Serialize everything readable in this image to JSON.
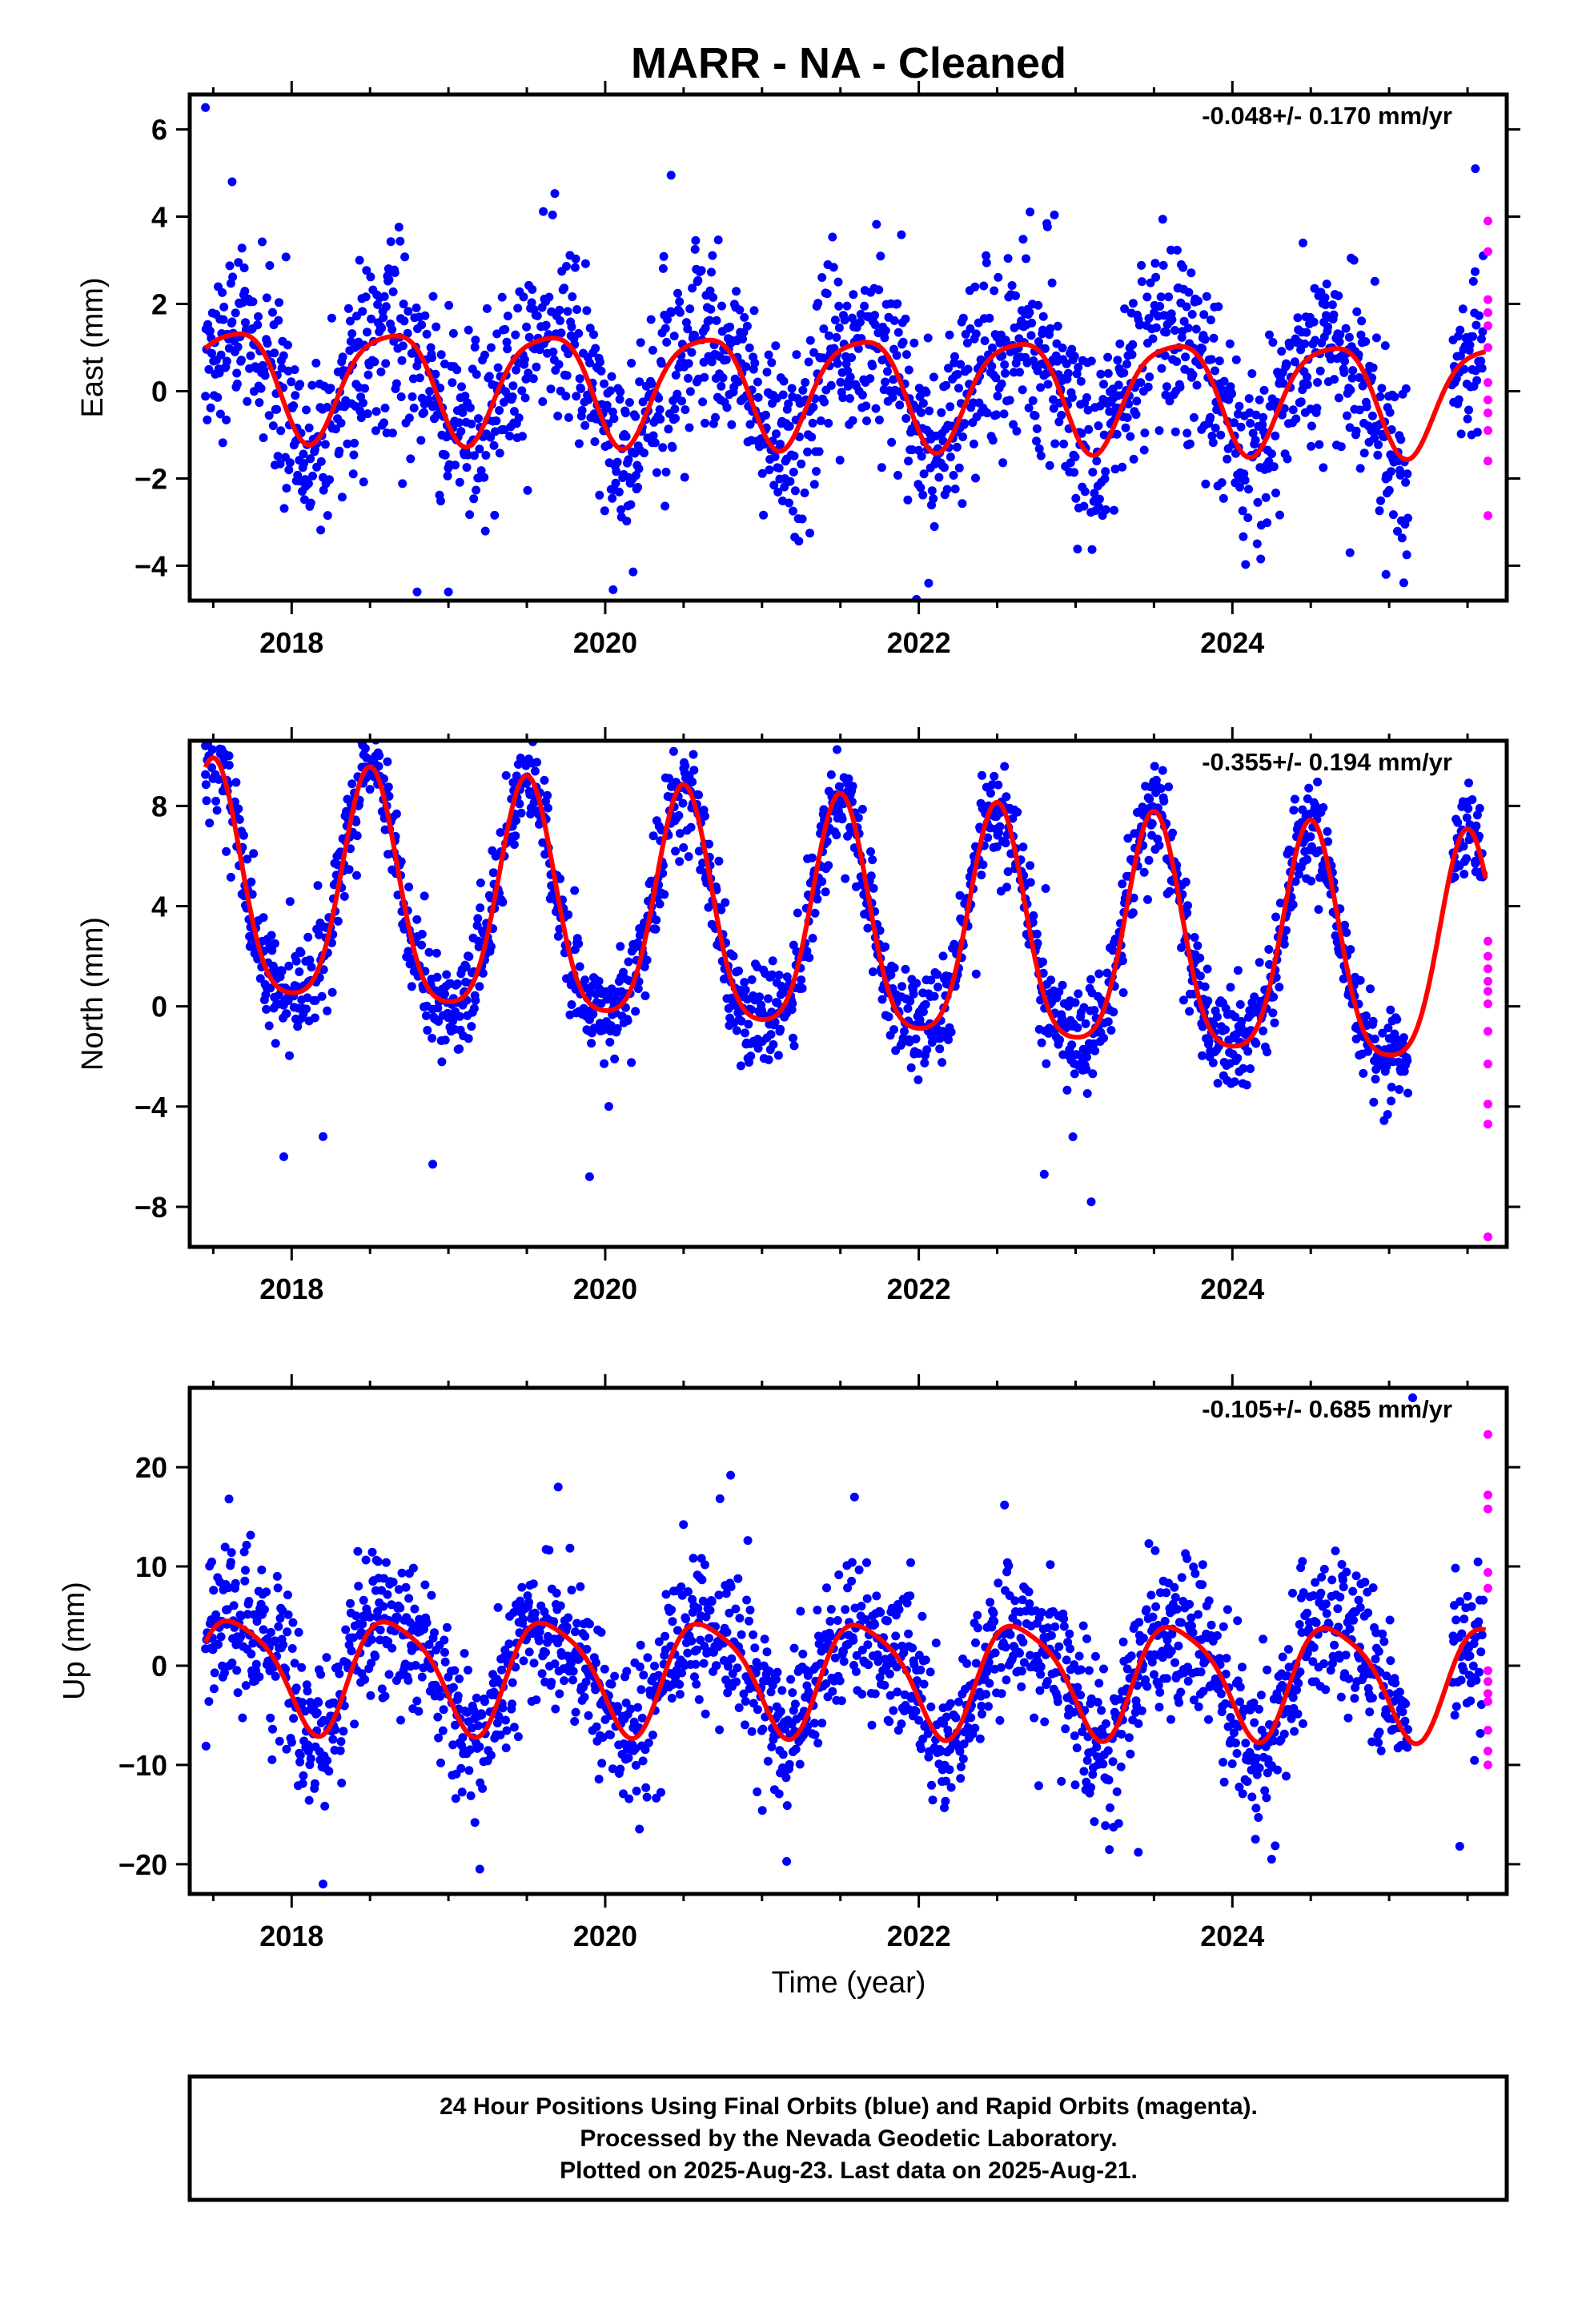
{
  "page": {
    "title": "MARR  - NA - Cleaned",
    "footer_lines": [
      "24 Hour Positions Using Final Orbits (blue) and Rapid Orbits (magenta).",
      "Processed by the Nevada Geodetic Laboratory.",
      "Plotted on 2025-Aug-23. Last data on 2025-Aug-21."
    ]
  },
  "colors": {
    "final_orbits": "#0000ff",
    "rapid_orbits": "#ff00ff",
    "model_curve": "#ff0000",
    "frame": "#000000"
  },
  "chart_data": [
    {
      "type": "scatter",
      "ylabel": "East (mm)",
      "xlabel": "",
      "rate_label": "-0.048+/- 0.170 mm/yr",
      "xlim": [
        2017.35,
        2025.75
      ],
      "ylim": [
        -4.8,
        6.8
      ],
      "x_ticks": [
        2018,
        2020,
        2022,
        2024
      ],
      "x_tick_labels": [
        "2018",
        "2020",
        "2022",
        "2024"
      ],
      "y_ticks": [
        -4,
        -2,
        0,
        2,
        4,
        6
      ],
      "y_tick_labels": [
        "−4",
        "−2",
        "0",
        "2",
        "4",
        "6"
      ],
      "model": {
        "bias": 0.1,
        "annual_amp": 1.25,
        "annual_peak": 0.62,
        "semiannual_amp": 0.25,
        "semiannual_peak": 0.35,
        "trend": -0.048
      },
      "scatter_sd": 1.05,
      "outliers": [
        [
          2017.45,
          6.5
        ],
        [
          2017.62,
          4.8
        ],
        [
          2020.42,
          4.95
        ],
        [
          2020.05,
          -4.55
        ],
        [
          2019.0,
          -4.6
        ],
        [
          2018.8,
          -4.6
        ],
        [
          2024.98,
          -4.2
        ],
        [
          2024.75,
          -3.7
        ],
        [
          2025.55,
          5.1
        ]
      ],
      "rapid_orbits": {
        "x": [
          2025.63,
          2025.63,
          2025.63,
          2025.63,
          2025.63,
          2025.63,
          2025.63,
          2025.63,
          2025.63,
          2025.63,
          2025.63,
          2025.63
        ],
        "y": [
          3.9,
          3.2,
          2.1,
          1.8,
          1.5,
          1.0,
          0.2,
          -0.2,
          -0.5,
          -0.9,
          -1.6,
          -2.85
        ]
      },
      "series": [
        {
          "name": "Final Orbits",
          "color": "#0000ff"
        },
        {
          "name": "Rapid Orbits",
          "color": "#ff00ff"
        }
      ]
    },
    {
      "type": "scatter",
      "ylabel": "North (mm)",
      "xlabel": "",
      "rate_label": "-0.355+/- 0.194 mm/yr",
      "xlim": [
        2017.35,
        2025.75
      ],
      "ylim": [
        -9.6,
        10.6
      ],
      "x_ticks": [
        2018,
        2020,
        2022,
        2024
      ],
      "x_tick_labels": [
        "2018",
        "2020",
        "2022",
        "2024"
      ],
      "y_ticks": [
        -8,
        -4,
        0,
        4,
        8
      ],
      "y_tick_labels": [
        "−8",
        "−4",
        "0",
        "4",
        "8"
      ],
      "model": {
        "bias": 3.0,
        "annual_amp": 4.6,
        "annual_peak": 0.5,
        "semiannual_amp": 0.9,
        "semiannual_peak": 0.0,
        "trend": -0.355
      },
      "scatter_sd": 0.95,
      "outliers": [
        [
          2017.45,
          10.4
        ],
        [
          2017.6,
          10.0
        ],
        [
          2020.5,
          9.5
        ],
        [
          2017.95,
          -6.0
        ],
        [
          2018.2,
          -5.2
        ],
        [
          2018.9,
          -6.3
        ],
        [
          2019.9,
          -6.8
        ],
        [
          2023.1,
          -7.8
        ],
        [
          2022.8,
          -6.7
        ],
        [
          2025.55,
          5.7
        ]
      ],
      "rapid_orbits": {
        "x": [
          2025.63,
          2025.63,
          2025.63,
          2025.63,
          2025.63,
          2025.63,
          2025.63,
          2025.63,
          2025.63,
          2025.63,
          2025.63
        ],
        "y": [
          2.6,
          2.0,
          1.5,
          1.0,
          0.6,
          0.1,
          -1.0,
          -2.3,
          -3.9,
          -4.7,
          -9.2
        ]
      },
      "series": [
        {
          "name": "Final Orbits",
          "color": "#0000ff"
        },
        {
          "name": "Rapid Orbits",
          "color": "#ff00ff"
        }
      ]
    },
    {
      "type": "scatter",
      "ylabel": "Up (mm)",
      "xlabel": "Time (year)",
      "rate_label": "-0.105+/- 0.685 mm/yr",
      "xlim": [
        2017.35,
        2025.75
      ],
      "ylim": [
        -23,
        28
      ],
      "x_ticks": [
        2018,
        2020,
        2022,
        2024
      ],
      "x_tick_labels": [
        "2018",
        "2020",
        "2022",
        "2024"
      ],
      "y_ticks": [
        -20,
        -10,
        0,
        10,
        20
      ],
      "y_tick_labels": [
        "−20",
        "−10",
        "0",
        "10",
        "20"
      ],
      "model": {
        "bias": -0.9,
        "annual_amp": 5.6,
        "annual_peak": 0.65,
        "semiannual_amp": 1.1,
        "semiannual_peak": 0.45,
        "trend": -0.105
      },
      "scatter_sd": 3.6,
      "outliers": [
        [
          2017.6,
          16.8
        ],
        [
          2019.7,
          18.0
        ],
        [
          2020.8,
          19.2
        ],
        [
          2018.2,
          -22.0
        ],
        [
          2019.2,
          -20.5
        ],
        [
          2023.4,
          -18.8
        ],
        [
          2025.15,
          27.0
        ],
        [
          2024.25,
          -19.5
        ],
        [
          2025.45,
          -18.2
        ]
      ],
      "rapid_orbits": {
        "x": [
          2025.63,
          2025.63,
          2025.63,
          2025.63,
          2025.63,
          2025.63,
          2025.63,
          2025.63,
          2025.63,
          2025.63,
          2025.63,
          2025.63
        ],
        "y": [
          23.3,
          17.2,
          15.8,
          9.4,
          7.8,
          -0.5,
          -1.6,
          -2.8,
          -3.6,
          -6.5,
          -8.6,
          -10.0
        ]
      },
      "series": [
        {
          "name": "Final Orbits",
          "color": "#0000ff"
        },
        {
          "name": "Rapid Orbits",
          "color": "#ff00ff"
        }
      ]
    }
  ]
}
